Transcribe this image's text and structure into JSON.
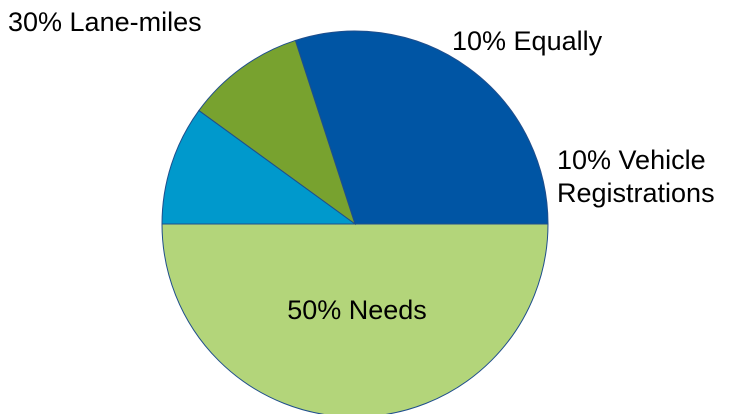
{
  "chart_data": {
    "type": "pie",
    "title": "",
    "start_angle_deg": 180,
    "direction": "clockwise",
    "slices": [
      {
        "label_lines": [
          "50% Needs"
        ],
        "value": 50,
        "color": "#b3d57a"
      },
      {
        "label_lines": [
          "30% Lane-miles"
        ],
        "value": 30,
        "color": "#0055a4"
      },
      {
        "label_lines": [
          "10% Equally"
        ],
        "value": 10,
        "color": "#78a22f"
      },
      {
        "label_lines": [
          "10% Vehicle",
          "Registrations"
        ],
        "value": 10,
        "color": "#0099cc"
      }
    ]
  }
}
